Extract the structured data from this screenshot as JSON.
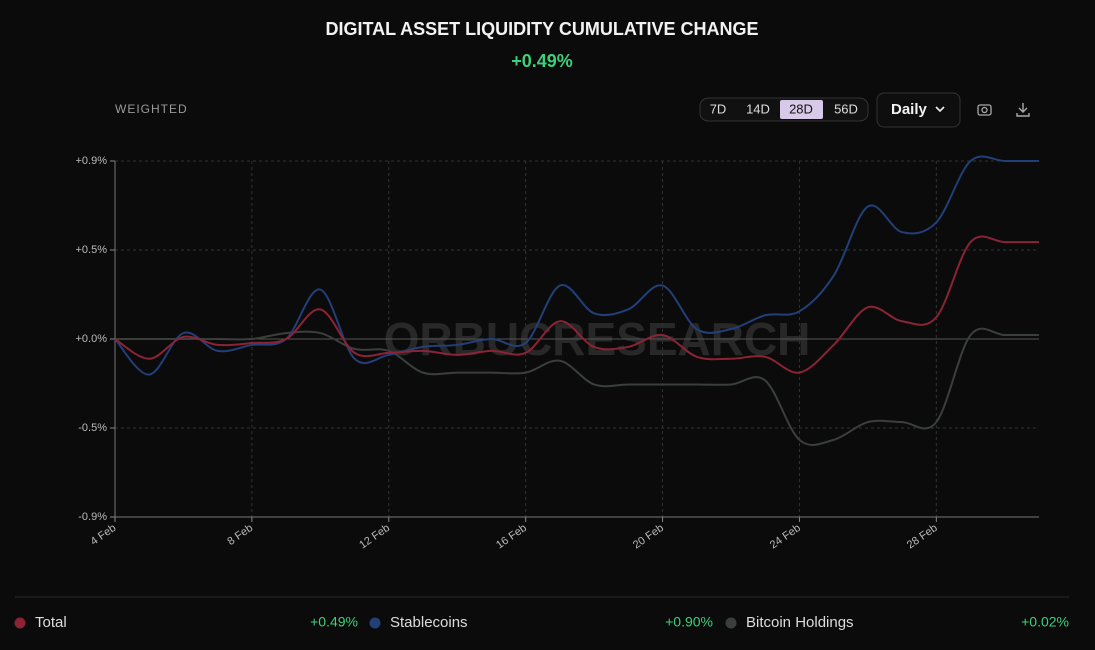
{
  "chart_data": {
    "type": "line",
    "title": "DIGITAL ASSET LIQUIDITY CUMULATIVE CHANGE",
    "subtitle": "+0.49%",
    "watermark": "ORBUCRESEARCH",
    "controls": {
      "weighting": "WEIGHTED",
      "ranges": [
        "7D",
        "14D",
        "28D",
        "56D"
      ],
      "active_range": "28D",
      "interval": "Daily"
    },
    "categories": [
      "4 Feb",
      null,
      null,
      null,
      "8 Feb",
      null,
      null,
      null,
      "12 Feb",
      null,
      null,
      null,
      "16 Feb",
      null,
      null,
      null,
      "20 Feb",
      null,
      null,
      null,
      "24 Feb",
      null,
      null,
      null,
      "28 Feb",
      null,
      null,
      null
    ],
    "ylim": [
      -0.9,
      0.9
    ],
    "yticks": [
      {
        "value": -0.9,
        "label": "-0.9%"
      },
      {
        "value": -0.45,
        "label": "-0.5%"
      },
      {
        "value": 0,
        "label": "+0.0%"
      },
      {
        "value": 0.45,
        "label": "+0.5%"
      },
      {
        "value": 0.9,
        "label": "+0.9%"
      }
    ],
    "grid": true,
    "series": [
      {
        "name": "Total",
        "color": "#8b2335",
        "change_label": "+0.49%",
        "values": [
          0,
          -0.1,
          0.01,
          -0.03,
          -0.02,
          0.0,
          0.15,
          -0.07,
          -0.07,
          -0.06,
          -0.08,
          -0.06,
          -0.07,
          0.09,
          -0.04,
          -0.04,
          0.02,
          -0.09,
          -0.1,
          -0.09,
          -0.17,
          -0.03,
          0.16,
          0.09,
          0.11,
          0.49,
          0.49,
          0.49
        ]
      },
      {
        "name": "Stablecoins",
        "color": "#223f78",
        "change_label": "+0.90%",
        "values": [
          0,
          -0.18,
          0.03,
          -0.06,
          -0.03,
          0.0,
          0.25,
          -0.1,
          -0.08,
          -0.04,
          -0.03,
          0.0,
          -0.02,
          0.27,
          0.13,
          0.15,
          0.27,
          0.05,
          0.05,
          0.12,
          0.14,
          0.32,
          0.67,
          0.54,
          0.59,
          0.9,
          0.9,
          0.9
        ]
      },
      {
        "name": "Bitcoin Holdings",
        "color": "#3a3f3c",
        "change_label": "+0.02%",
        "values": [
          0,
          0,
          0,
          0,
          0,
          0.03,
          0.03,
          -0.05,
          -0.06,
          -0.17,
          -0.17,
          -0.17,
          -0.17,
          -0.11,
          -0.23,
          -0.23,
          -0.23,
          -0.23,
          -0.23,
          -0.21,
          -0.51,
          -0.51,
          -0.42,
          -0.42,
          -0.42,
          0.02,
          0.02,
          0.02
        ]
      }
    ]
  }
}
